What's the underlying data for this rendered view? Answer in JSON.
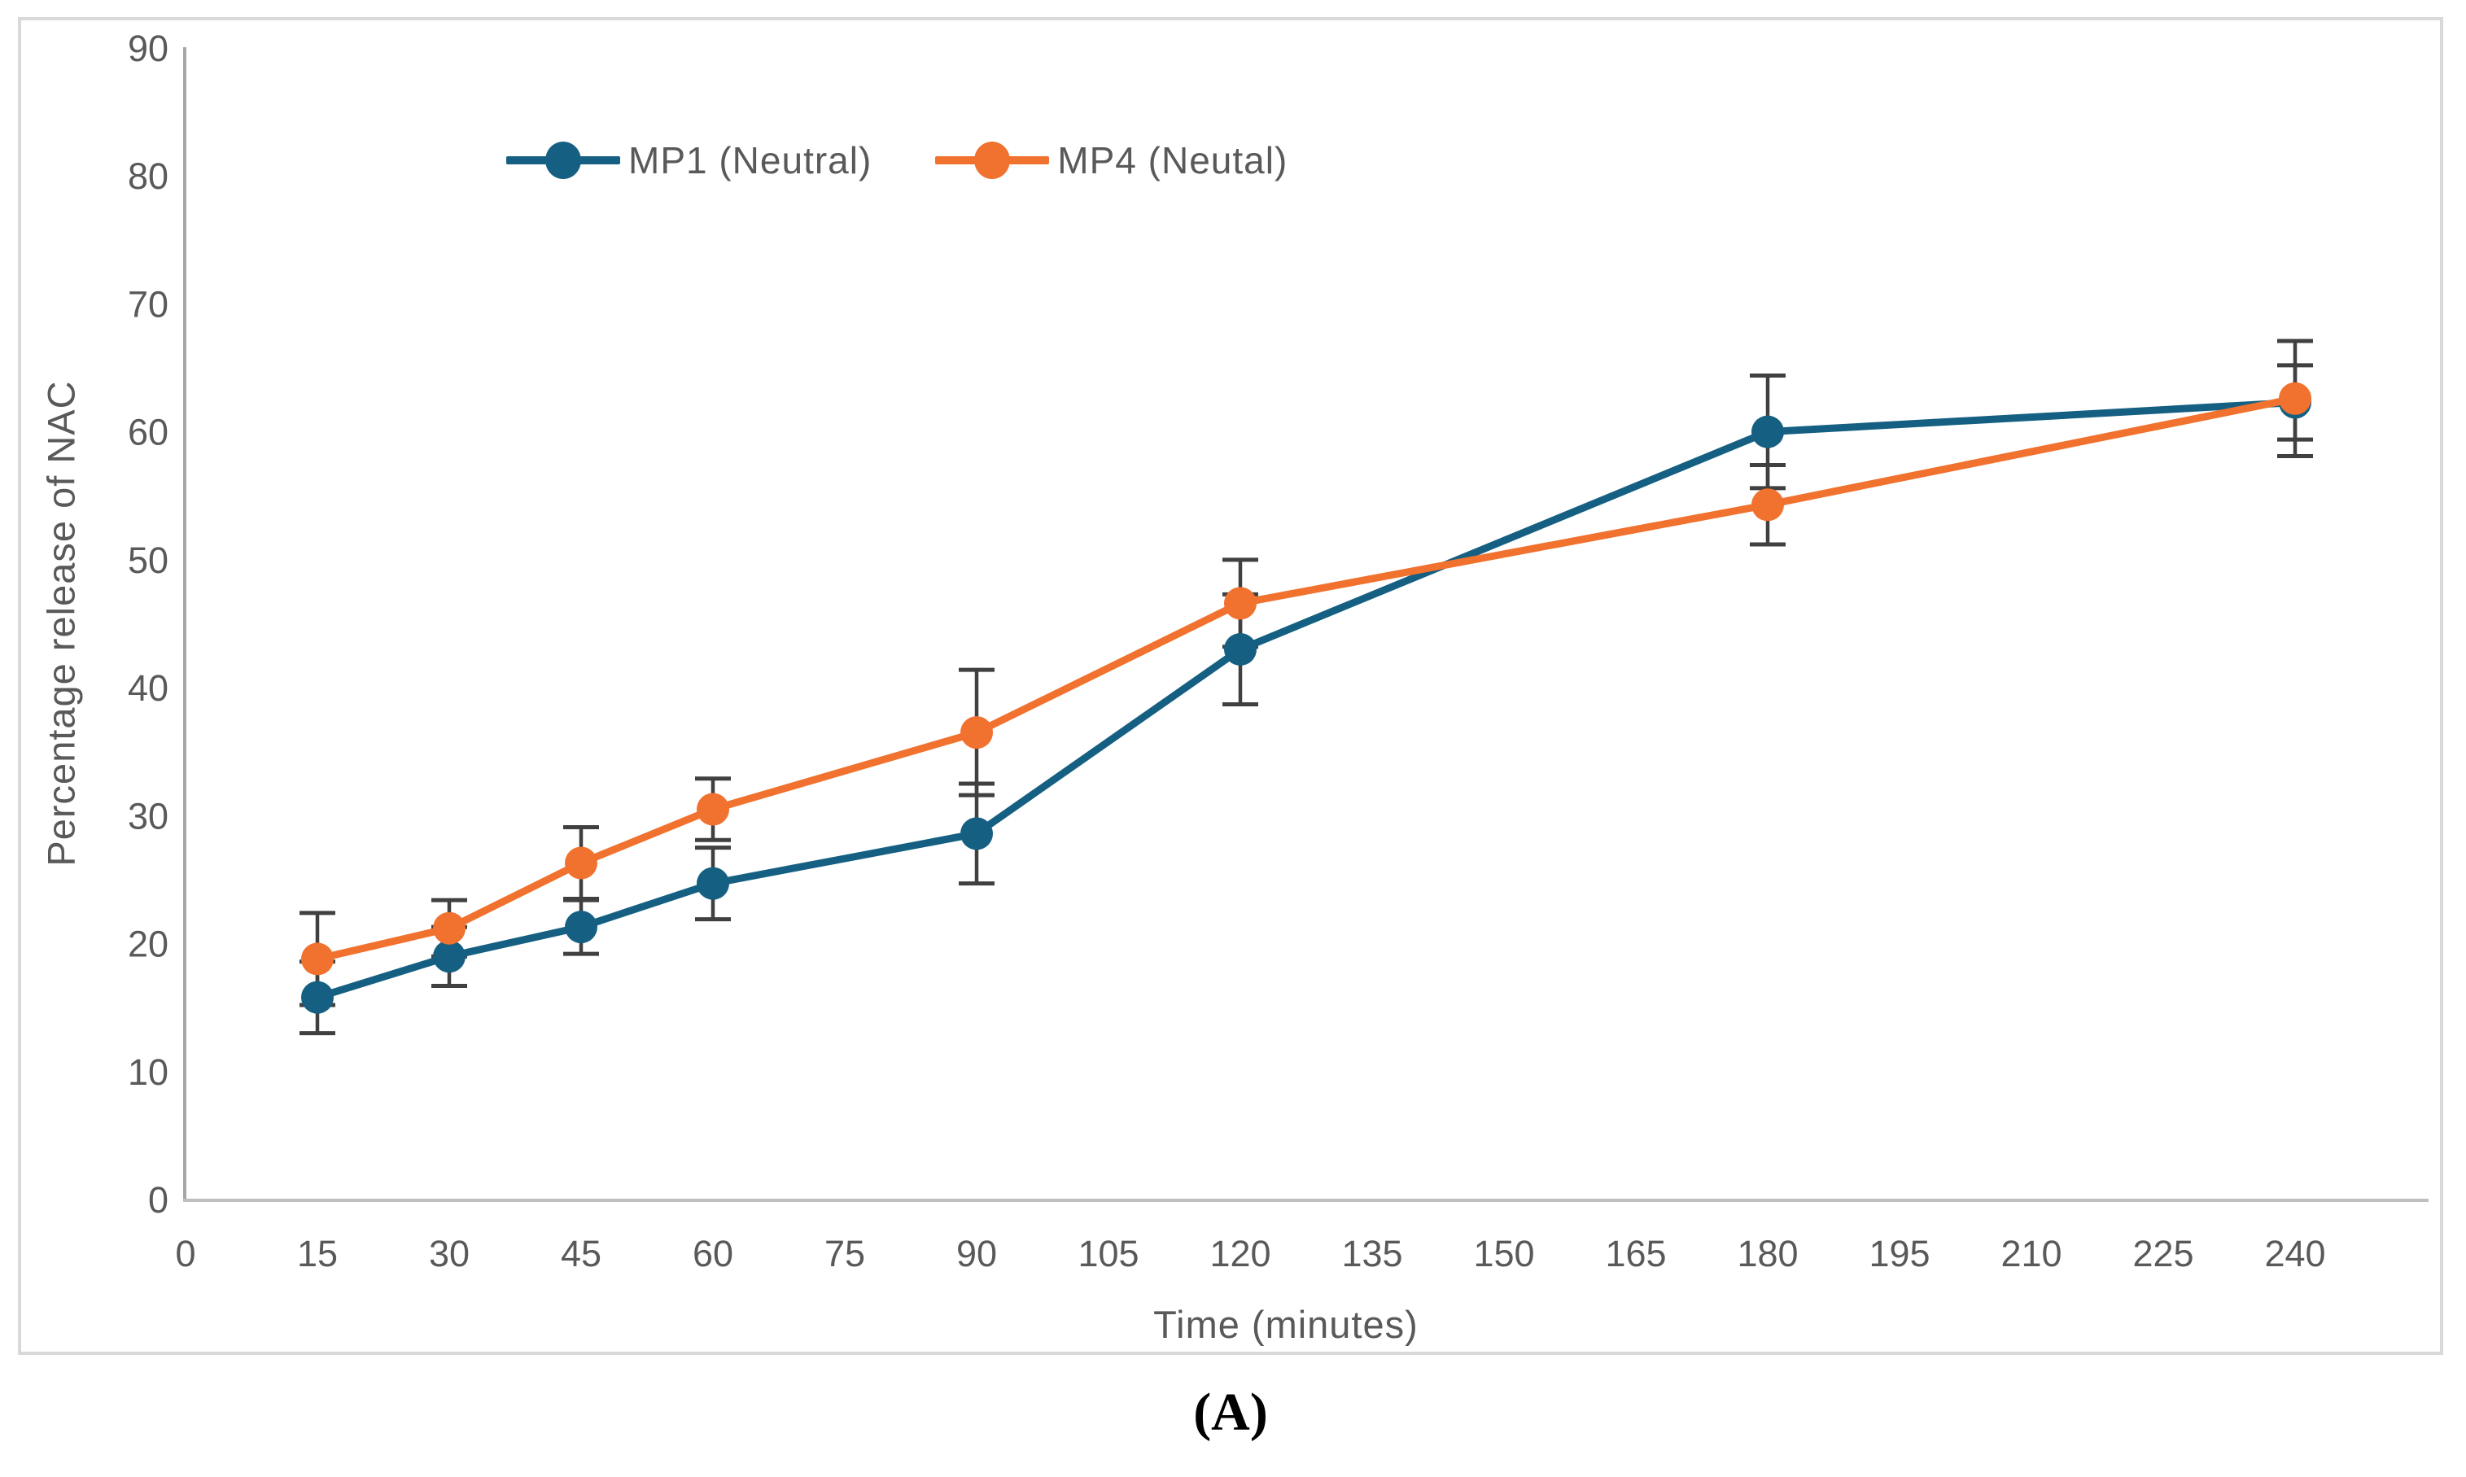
{
  "figure": {
    "caption": "(A)"
  },
  "chart_data": {
    "type": "line",
    "title": "",
    "xlabel": "Time (minutes)",
    "ylabel": "Percentage release of NAC",
    "x_ticks": [
      0,
      15,
      30,
      45,
      60,
      75,
      90,
      105,
      120,
      135,
      150,
      165,
      180,
      195,
      210,
      225,
      240
    ],
    "xlim": [
      0,
      255
    ],
    "ylim": [
      0,
      90
    ],
    "y_tick_step": 10,
    "grid": false,
    "legend_position": "top-center",
    "error_bars": true,
    "series": [
      {
        "name": "MP1 (Neutral)",
        "color": "#156082",
        "x": [
          15,
          30,
          45,
          60,
          90,
          120,
          180,
          240
        ],
        "values": [
          15.8,
          19.0,
          21.3,
          24.7,
          28.6,
          43.0,
          60.0,
          62.3
        ],
        "errors": [
          2.8,
          2.3,
          2.1,
          2.8,
          3.9,
          4.3,
          4.4,
          2.9
        ]
      },
      {
        "name": "MP4 (Neutal)",
        "color": "#F1712E",
        "x": [
          15,
          30,
          45,
          60,
          90,
          120,
          180,
          240
        ],
        "values": [
          18.8,
          21.2,
          26.3,
          30.5,
          36.5,
          46.6,
          54.3,
          62.6
        ],
        "errors": [
          3.6,
          2.2,
          2.8,
          2.4,
          4.9,
          3.4,
          3.1,
          4.5
        ]
      }
    ],
    "style_colors": {
      "y_axis_line": "#A6A6A6",
      "x_axis_line": "#BFBFBF",
      "error_bar": "#404040",
      "tick_text": "#595959",
      "frame_border": "#D9D9D9"
    }
  }
}
